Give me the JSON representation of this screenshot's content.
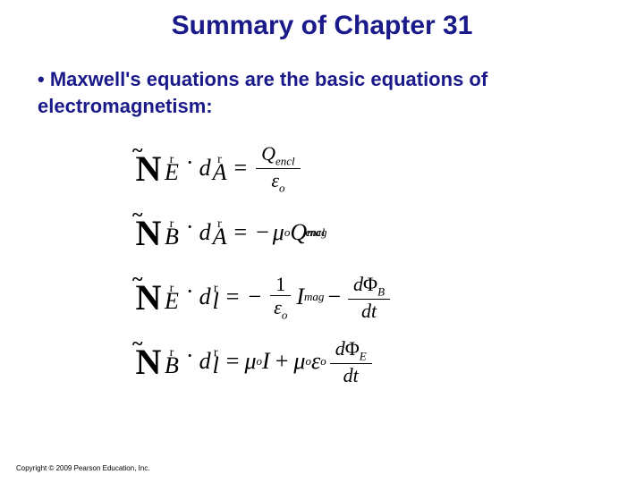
{
  "title": "Summary of Chapter 31",
  "bullet": "• Maxwell's equations are the basic equations of electromagnetism:",
  "copyright": "Copyright © 2009 Pearson Education, Inc.",
  "colors": {
    "heading": "#1a1a8a",
    "text": "#000000",
    "background": "#ffffff"
  },
  "equations": {
    "eq1": {
      "lhs_field": "E",
      "lhs_diff": "A",
      "rhs_num": "Q",
      "rhs_num_sub": "encl",
      "rhs_den": "ε",
      "rhs_den_sub": "o"
    },
    "eq2": {
      "lhs_field": "B",
      "lhs_diff": "A",
      "rhs_mu": "μ",
      "rhs_mu_sub": "o",
      "rhs_Q": "Q",
      "rhs_Q_sup": "mag",
      "rhs_Q_sub": "encl"
    },
    "eq3": {
      "lhs_field": "E",
      "lhs_diff": "l",
      "frac_num": "1",
      "frac_den": "ε",
      "frac_den_sub": "o",
      "I": "I",
      "I_sup": "mag",
      "d": "d",
      "Phi": "Φ",
      "Phi_sub": "B",
      "dt": "dt"
    },
    "eq4": {
      "lhs_field": "B",
      "lhs_diff": "l",
      "mu": "μ",
      "mu_sub": "o",
      "I": "I",
      "eps": "ε",
      "eps_sub": "o",
      "d": "d",
      "Phi": "Φ",
      "Phi_sub": "E",
      "dt": "dt"
    }
  }
}
